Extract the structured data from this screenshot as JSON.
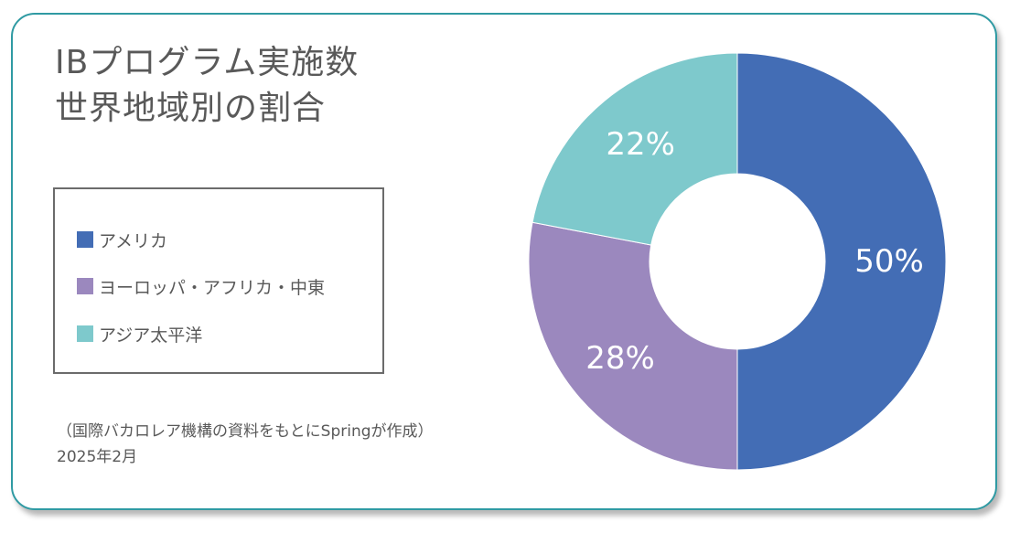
{
  "title": {
    "line1": "IBプログラム実施数",
    "line2": "世界地域別の割合"
  },
  "legend": [
    {
      "label": "アメリカ",
      "color": "#436db5"
    },
    {
      "label": "ヨーロッパ・アフリカ・中東",
      "color": "#9b88be"
    },
    {
      "label": "アジア太平洋",
      "color": "#7ec9cc"
    }
  ],
  "note": {
    "line1": "（国際バカロレア機構の資料をもとにSpringが作成）",
    "line2": "2025年2月"
  },
  "chart_data": {
    "type": "pie",
    "donut": true,
    "categories": [
      "アメリカ",
      "ヨーロッパ・アフリカ・中東",
      "アジア太平洋"
    ],
    "values": [
      50,
      28,
      22
    ],
    "labels": [
      "50%",
      "28%",
      "22%"
    ],
    "colors": [
      "#436db5",
      "#9b88be",
      "#7ec9cc"
    ],
    "legend_position": "left"
  }
}
